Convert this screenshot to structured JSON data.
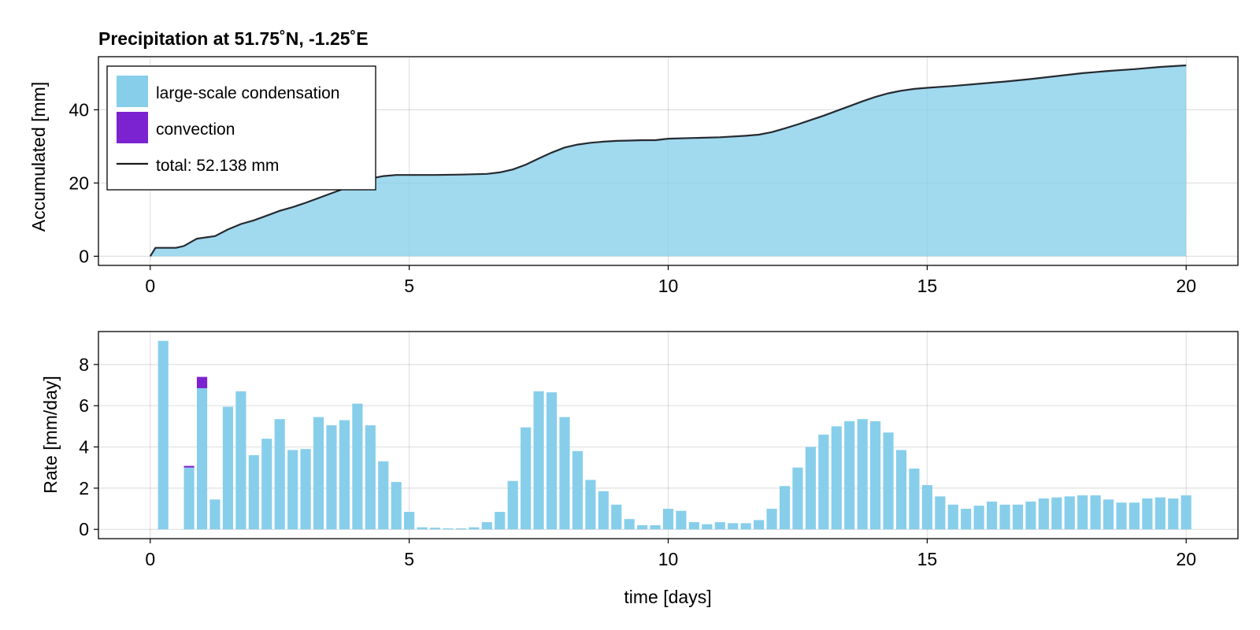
{
  "chart_data": [
    {
      "type": "area",
      "title": "Precipitation at 51.75˚N, -1.25˚E",
      "xlabel": "",
      "ylabel": "Accumulated [mm]",
      "xlim": [
        -1,
        21
      ],
      "ylim": [
        -2.5,
        54.5
      ],
      "xticks": [
        0,
        5,
        10,
        15,
        20
      ],
      "yticks": [
        0,
        20,
        40
      ],
      "grid": true,
      "legend_position": "top-left",
      "legend": [
        {
          "label": "large-scale condensation",
          "kind": "patch",
          "color": "#87ceeb"
        },
        {
          "label": "convection",
          "kind": "patch",
          "color": "#7b23d0"
        },
        {
          "label": "total: 52.138 mm",
          "kind": "line",
          "color": "#1a1a1a"
        }
      ],
      "series": [
        {
          "name": "large-scale condensation",
          "color": "#87ceeb",
          "x": [
            0,
            0.1,
            0.2,
            0.5,
            0.65,
            0.9,
            1.25,
            1.5,
            1.75,
            2.0,
            2.25,
            2.5,
            2.75,
            3.0,
            3.25,
            3.5,
            3.75,
            4.0,
            4.25,
            4.5,
            4.75,
            5.0,
            5.25,
            5.5,
            6.0,
            6.5,
            6.75,
            7.0,
            7.25,
            7.5,
            7.75,
            8.0,
            8.25,
            8.5,
            8.75,
            9.0,
            9.25,
            9.5,
            9.75,
            10.0,
            10.5,
            11.0,
            11.5,
            11.75,
            12.0,
            12.25,
            12.5,
            12.75,
            13.0,
            13.25,
            13.5,
            13.75,
            14.0,
            14.25,
            14.5,
            14.75,
            15.0,
            15.5,
            16.0,
            16.5,
            17.0,
            17.5,
            18.0,
            18.5,
            19.0,
            19.5,
            20.0
          ],
          "y": [
            0,
            2.3,
            2.3,
            2.3,
            2.8,
            4.7,
            5.4,
            7.2,
            8.7,
            9.7,
            11.0,
            12.3,
            13.3,
            14.5,
            15.8,
            17.1,
            18.4,
            19.9,
            21.1,
            21.8,
            22.1,
            22.1,
            22.1,
            22.1,
            22.2,
            22.4,
            22.8,
            23.6,
            24.9,
            26.6,
            28.2,
            29.6,
            30.4,
            30.9,
            31.2,
            31.4,
            31.5,
            31.6,
            31.6,
            32.0,
            32.2,
            32.4,
            32.8,
            33.1,
            33.8,
            34.8,
            35.9,
            37.1,
            38.3,
            39.6,
            40.9,
            42.2,
            43.4,
            44.4,
            45.1,
            45.6,
            45.9,
            46.4,
            47.0,
            47.6,
            48.3,
            49.1,
            49.9,
            50.5,
            51.0,
            51.6,
            52.1
          ]
        },
        {
          "name": "convection",
          "color": "#7b23d0",
          "x": [
            0,
            20.0
          ],
          "y": [
            0,
            0.2
          ]
        },
        {
          "name": "total: 52.138 mm",
          "color": "#1a1a1a",
          "x": [
            0,
            0.1,
            0.2,
            0.5,
            0.65,
            0.9,
            1.25,
            1.5,
            1.75,
            2.0,
            2.25,
            2.5,
            2.75,
            3.0,
            3.25,
            3.5,
            3.75,
            4.0,
            4.25,
            4.5,
            4.75,
            5.0,
            5.25,
            5.5,
            6.0,
            6.5,
            6.75,
            7.0,
            7.25,
            7.5,
            7.75,
            8.0,
            8.25,
            8.5,
            8.75,
            9.0,
            9.25,
            9.5,
            9.75,
            10.0,
            10.5,
            11.0,
            11.5,
            11.75,
            12.0,
            12.25,
            12.5,
            12.75,
            13.0,
            13.25,
            13.5,
            13.75,
            14.0,
            14.25,
            14.5,
            14.75,
            15.0,
            15.5,
            16.0,
            16.5,
            17.0,
            17.5,
            18.0,
            18.5,
            19.0,
            19.5,
            20.0
          ],
          "y": [
            0,
            2.3,
            2.3,
            2.3,
            2.8,
            4.8,
            5.5,
            7.3,
            8.8,
            9.8,
            11.1,
            12.4,
            13.4,
            14.6,
            15.9,
            17.2,
            18.5,
            20.0,
            21.2,
            21.9,
            22.2,
            22.2,
            22.2,
            22.2,
            22.3,
            22.5,
            22.9,
            23.7,
            25.0,
            26.7,
            28.3,
            29.7,
            30.5,
            31.0,
            31.3,
            31.5,
            31.6,
            31.7,
            31.7,
            32.1,
            32.3,
            32.5,
            32.9,
            33.2,
            33.9,
            34.9,
            36.0,
            37.2,
            38.4,
            39.7,
            41.0,
            42.3,
            43.5,
            44.5,
            45.2,
            45.7,
            46.0,
            46.5,
            47.1,
            47.7,
            48.4,
            49.2,
            50.0,
            50.6,
            51.1,
            51.7,
            52.138
          ]
        }
      ]
    },
    {
      "type": "bar",
      "title": "",
      "xlabel": "time [days]",
      "ylabel": "Rate [mm/day]",
      "xlim": [
        -1,
        21
      ],
      "ylim": [
        -0.45,
        9.6
      ],
      "xticks": [
        0,
        5,
        10,
        15,
        20
      ],
      "yticks": [
        0,
        2,
        4,
        6,
        8
      ],
      "grid": true,
      "bar_width_days": 0.2,
      "x": [
        0.25,
        0.5,
        0.75,
        1.0,
        1.25,
        1.5,
        1.75,
        2.0,
        2.25,
        2.5,
        2.75,
        3.0,
        3.25,
        3.5,
        3.75,
        4.0,
        4.25,
        4.5,
        4.75,
        5.0,
        5.25,
        5.5,
        5.75,
        6.0,
        6.25,
        6.5,
        6.75,
        7.0,
        7.25,
        7.5,
        7.75,
        8.0,
        8.25,
        8.5,
        8.75,
        9.0,
        9.25,
        9.5,
        9.75,
        10.0,
        10.25,
        10.5,
        10.75,
        11.0,
        11.25,
        11.5,
        11.75,
        12.0,
        12.25,
        12.5,
        12.75,
        13.0,
        13.25,
        13.5,
        13.75,
        14.0,
        14.25,
        14.5,
        14.75,
        15.0,
        15.25,
        15.5,
        15.75,
        16.0,
        16.25,
        16.5,
        16.75,
        17.0,
        17.25,
        17.5,
        17.75,
        18.0,
        18.25,
        18.5,
        18.75,
        19.0,
        19.25,
        19.5,
        19.75,
        20.0
      ],
      "series": [
        {
          "name": "large-scale condensation",
          "color": "#87ceeb",
          "values": [
            9.15,
            0,
            3.0,
            6.85,
            1.45,
            5.95,
            6.7,
            3.6,
            4.4,
            5.35,
            3.85,
            3.9,
            5.45,
            5.05,
            5.3,
            6.1,
            5.05,
            3.3,
            2.3,
            0.85,
            0.1,
            0.08,
            0.05,
            0.05,
            0.1,
            0.35,
            0.85,
            2.35,
            4.95,
            6.7,
            6.65,
            5.45,
            3.8,
            2.4,
            1.85,
            1.2,
            0.5,
            0.2,
            0.2,
            1.0,
            0.9,
            0.35,
            0.25,
            0.35,
            0.3,
            0.3,
            0.45,
            1.0,
            2.1,
            3.0,
            4.0,
            4.6,
            5.0,
            5.25,
            5.35,
            5.25,
            4.7,
            3.85,
            2.95,
            2.15,
            1.6,
            1.2,
            1.0,
            1.15,
            1.35,
            1.2,
            1.2,
            1.35,
            1.5,
            1.55,
            1.6,
            1.65,
            1.65,
            1.45,
            1.3,
            1.3,
            1.5,
            1.55,
            1.5,
            1.65
          ]
        },
        {
          "name": "convection",
          "color": "#7b23d0",
          "values": [
            0,
            0,
            0.08,
            0.55,
            0,
            0,
            0,
            0,
            0,
            0,
            0,
            0,
            0,
            0,
            0,
            0,
            0,
            0,
            0,
            0,
            0,
            0,
            0,
            0,
            0,
            0,
            0,
            0,
            0,
            0,
            0,
            0,
            0,
            0,
            0,
            0,
            0,
            0,
            0,
            0,
            0,
            0,
            0,
            0,
            0,
            0,
            0,
            0,
            0,
            0,
            0,
            0,
            0,
            0,
            0,
            0,
            0,
            0,
            0,
            0,
            0,
            0,
            0,
            0,
            0,
            0,
            0,
            0,
            0,
            0,
            0,
            0,
            0,
            0,
            0,
            0,
            0,
            0,
            0,
            0
          ]
        }
      ]
    }
  ]
}
